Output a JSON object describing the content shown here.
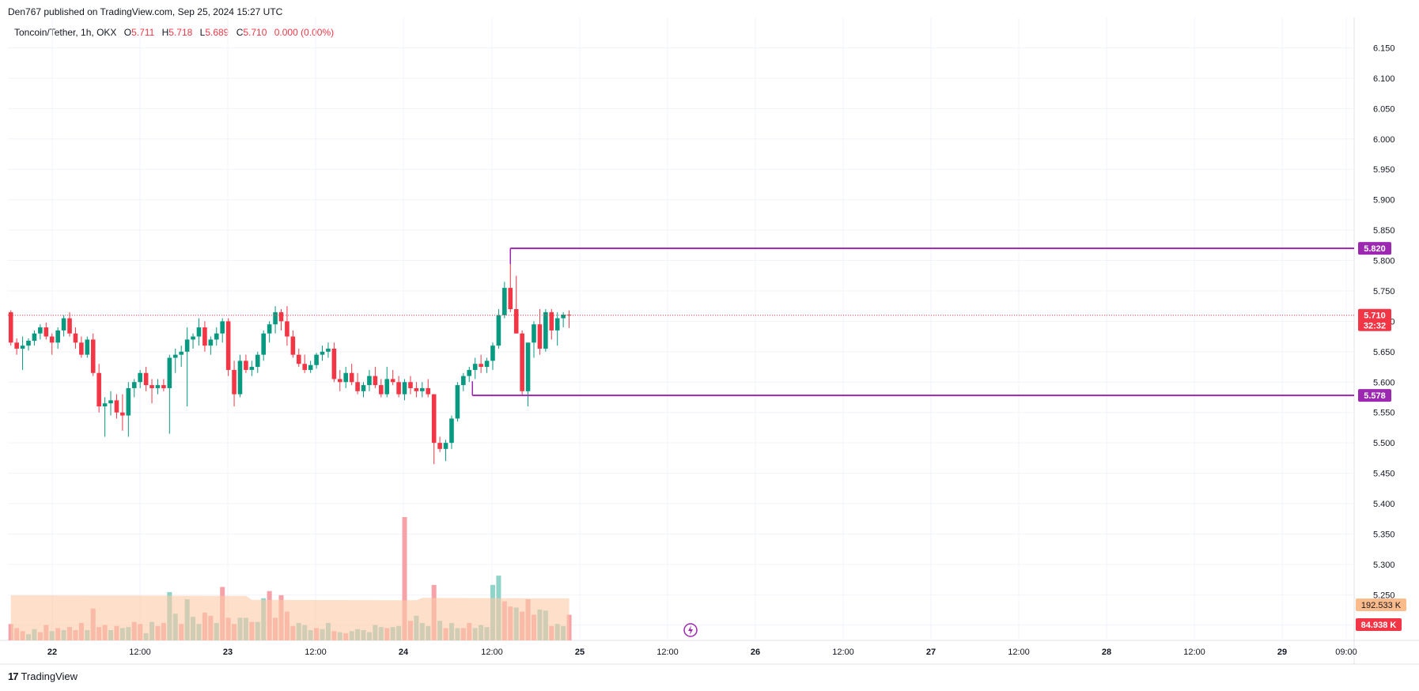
{
  "header": {
    "published": "Den767 published on TradingView.com, Sep 25, 2024 15:27 UTC"
  },
  "legend": {
    "symbol": "Toncoin/Tether, 1h, OKX",
    "o_label": "O",
    "o_value": "5.711",
    "h_label": "H",
    "h_value": "5.718",
    "l_label": "L",
    "l_value": "5.689",
    "c_label": "C",
    "c_value": "5.710",
    "change": "0.000 (0.00%)"
  },
  "footer": {
    "brand": "TradingView",
    "brand_mark": "17"
  },
  "colors": {
    "up": "#089981",
    "down": "#f23645",
    "up_volume": "#8fd3c9",
    "down_volume": "#f5a3a9",
    "volume_ma": "#fcc9a6",
    "level": "#9c27b0",
    "price_line": "#f23645",
    "grid": "#f0f3fa"
  },
  "chart_data": {
    "type": "candlestick",
    "symbol": "Toncoin/Tether",
    "interval": "1h",
    "exchange": "OKX",
    "y_ticks": [
      "5.200",
      "5.250",
      "5.300",
      "5.350",
      "5.400",
      "5.450",
      "5.500",
      "5.550",
      "5.600",
      "5.650",
      "5.700",
      "5.750",
      "5.800",
      "5.850",
      "5.900",
      "5.950",
      "6.000",
      "6.050",
      "6.100",
      "6.150"
    ],
    "ylim": [
      5.19,
      6.19
    ],
    "x_ticks": [
      "22",
      "12:00",
      "23",
      "12:00",
      "24",
      "12:00",
      "25",
      "12:00",
      "26",
      "12:00",
      "27",
      "12:00",
      "28",
      "12:00",
      "29",
      "09:00"
    ],
    "levels": [
      {
        "label": "5.820",
        "value": 5.82
      },
      {
        "label": "5.578",
        "value": 5.578
      }
    ],
    "last_price": {
      "value": 5.71,
      "label": "5.710",
      "countdown": "32:32"
    },
    "volume_labels": {
      "volume_ma": "192.533 K",
      "volume": "84.938 K"
    },
    "candles": [
      [
        5.715,
        5.718,
        5.66,
        5.665
      ],
      [
        5.665,
        5.672,
        5.645,
        5.655
      ],
      [
        5.655,
        5.675,
        5.62,
        5.66
      ],
      [
        5.66,
        5.672,
        5.652,
        5.668
      ],
      [
        5.668,
        5.685,
        5.66,
        5.68
      ],
      [
        5.68,
        5.695,
        5.67,
        5.69
      ],
      [
        5.69,
        5.698,
        5.67,
        5.675
      ],
      [
        5.675,
        5.68,
        5.645,
        5.665
      ],
      [
        5.665,
        5.69,
        5.655,
        5.685
      ],
      [
        5.685,
        5.71,
        5.675,
        5.705
      ],
      [
        5.705,
        5.715,
        5.675,
        5.68
      ],
      [
        5.68,
        5.69,
        5.655,
        5.665
      ],
      [
        5.665,
        5.675,
        5.64,
        5.645
      ],
      [
        5.645,
        5.675,
        5.64,
        5.67
      ],
      [
        5.67,
        5.68,
        5.61,
        5.615
      ],
      [
        5.615,
        5.63,
        5.55,
        5.56
      ],
      [
        5.56,
        5.575,
        5.51,
        5.565
      ],
      [
        5.565,
        5.585,
        5.545,
        5.57
      ],
      [
        5.57,
        5.58,
        5.54,
        5.55
      ],
      [
        5.55,
        5.58,
        5.52,
        5.545
      ],
      [
        5.545,
        5.6,
        5.51,
        5.59
      ],
      [
        5.59,
        5.605,
        5.575,
        5.6
      ],
      [
        5.6,
        5.62,
        5.59,
        5.615
      ],
      [
        5.615,
        5.625,
        5.585,
        5.595
      ],
      [
        5.595,
        5.605,
        5.565,
        5.59
      ],
      [
        5.59,
        5.605,
        5.58,
        5.595
      ],
      [
        5.595,
        5.605,
        5.585,
        5.59
      ],
      [
        5.59,
        5.645,
        5.515,
        5.64
      ],
      [
        5.64,
        5.655,
        5.615,
        5.645
      ],
      [
        5.645,
        5.66,
        5.625,
        5.65
      ],
      [
        5.65,
        5.69,
        5.56,
        5.67
      ],
      [
        5.67,
        5.68,
        5.655,
        5.675
      ],
      [
        5.675,
        5.705,
        5.66,
        5.69
      ],
      [
        5.69,
        5.7,
        5.65,
        5.66
      ],
      [
        5.66,
        5.675,
        5.645,
        5.67
      ],
      [
        5.67,
        5.69,
        5.66,
        5.68
      ],
      [
        5.68,
        5.705,
        5.665,
        5.7
      ],
      [
        5.7,
        5.705,
        5.61,
        5.62
      ],
      [
        5.62,
        5.635,
        5.56,
        5.58
      ],
      [
        5.58,
        5.645,
        5.575,
        5.635
      ],
      [
        5.635,
        5.645,
        5.615,
        5.62
      ],
      [
        5.62,
        5.635,
        5.61,
        5.625
      ],
      [
        5.625,
        5.65,
        5.615,
        5.645
      ],
      [
        5.645,
        5.685,
        5.635,
        5.68
      ],
      [
        5.68,
        5.7,
        5.665,
        5.695
      ],
      [
        5.695,
        5.725,
        5.68,
        5.715
      ],
      [
        5.715,
        5.72,
        5.685,
        5.7
      ],
      [
        5.7,
        5.725,
        5.66,
        5.675
      ],
      [
        5.675,
        5.685,
        5.64,
        5.645
      ],
      [
        5.645,
        5.655,
        5.625,
        5.63
      ],
      [
        5.63,
        5.645,
        5.615,
        5.62
      ],
      [
        5.62,
        5.635,
        5.615,
        5.628
      ],
      [
        5.628,
        5.648,
        5.622,
        5.645
      ],
      [
        5.645,
        5.66,
        5.635,
        5.65
      ],
      [
        5.65,
        5.665,
        5.64,
        5.655
      ],
      [
        5.655,
        5.665,
        5.6,
        5.605
      ],
      [
        5.605,
        5.62,
        5.585,
        5.6
      ],
      [
        5.6,
        5.625,
        5.59,
        5.615
      ],
      [
        5.615,
        5.63,
        5.595,
        5.6
      ],
      [
        5.6,
        5.615,
        5.58,
        5.585
      ],
      [
        5.585,
        5.6,
        5.575,
        5.595
      ],
      [
        5.595,
        5.62,
        5.585,
        5.61
      ],
      [
        5.61,
        5.625,
        5.59,
        5.595
      ],
      [
        5.595,
        5.605,
        5.575,
        5.58
      ],
      [
        5.58,
        5.625,
        5.575,
        5.605
      ],
      [
        5.605,
        5.62,
        5.595,
        5.6
      ],
      [
        5.6,
        5.61,
        5.575,
        5.58
      ],
      [
        5.58,
        5.605,
        5.57,
        5.6
      ],
      [
        5.6,
        5.61,
        5.58,
        5.59
      ],
      [
        5.59,
        5.6,
        5.575,
        5.585
      ],
      [
        5.585,
        5.6,
        5.575,
        5.59
      ],
      [
        5.59,
        5.605,
        5.575,
        5.58
      ],
      [
        5.58,
        5.58,
        5.465,
        5.5
      ],
      [
        5.5,
        5.51,
        5.485,
        5.49
      ],
      [
        5.49,
        5.505,
        5.47,
        5.5
      ],
      [
        5.5,
        5.545,
        5.49,
        5.54
      ],
      [
        5.54,
        5.6,
        5.535,
        5.595
      ],
      [
        5.595,
        5.615,
        5.585,
        5.61
      ],
      [
        5.61,
        5.625,
        5.6,
        5.62
      ],
      [
        5.62,
        5.64,
        5.605,
        5.63
      ],
      [
        5.63,
        5.645,
        5.615,
        5.625
      ],
      [
        5.625,
        5.64,
        5.615,
        5.635
      ],
      [
        5.635,
        5.665,
        5.62,
        5.66
      ],
      [
        5.66,
        5.72,
        5.655,
        5.71
      ],
      [
        5.71,
        5.765,
        5.705,
        5.755
      ],
      [
        5.755,
        5.82,
        5.715,
        5.72
      ],
      [
        5.72,
        5.775,
        5.68,
        5.68
      ],
      [
        5.68,
        5.685,
        5.578,
        5.585
      ],
      [
        5.585,
        5.66,
        5.56,
        5.665
      ],
      [
        5.665,
        5.7,
        5.64,
        5.695
      ],
      [
        5.695,
        5.72,
        5.645,
        5.655
      ],
      [
        5.655,
        5.72,
        5.65,
        5.715
      ],
      [
        5.715,
        5.72,
        5.67,
        5.685
      ],
      [
        5.685,
        5.715,
        5.66,
        5.705
      ],
      [
        5.705,
        5.715,
        5.69,
        5.711
      ],
      [
        5.711,
        5.718,
        5.689,
        5.71
      ]
    ],
    "volumes": [
      [
        80,
        "d"
      ],
      [
        60,
        "d"
      ],
      [
        45,
        "d"
      ],
      [
        30,
        "u"
      ],
      [
        55,
        "u"
      ],
      [
        40,
        "d"
      ],
      [
        75,
        "d"
      ],
      [
        45,
        "u"
      ],
      [
        60,
        "d"
      ],
      [
        50,
        "u"
      ],
      [
        65,
        "d"
      ],
      [
        50,
        "d"
      ],
      [
        85,
        "d"
      ],
      [
        50,
        "u"
      ],
      [
        155,
        "d"
      ],
      [
        65,
        "d"
      ],
      [
        75,
        "d"
      ],
      [
        50,
        "u"
      ],
      [
        70,
        "d"
      ],
      [
        60,
        "u"
      ],
      [
        65,
        "u"
      ],
      [
        90,
        "d"
      ],
      [
        80,
        "d"
      ],
      [
        35,
        "u"
      ],
      [
        90,
        "u"
      ],
      [
        70,
        "d"
      ],
      [
        85,
        "d"
      ],
      [
        235,
        "u"
      ],
      [
        130,
        "u"
      ],
      [
        80,
        "d"
      ],
      [
        200,
        "u"
      ],
      [
        115,
        "u"
      ],
      [
        80,
        "u"
      ],
      [
        135,
        "d"
      ],
      [
        120,
        "d"
      ],
      [
        85,
        "u"
      ],
      [
        260,
        "d"
      ],
      [
        110,
        "d"
      ],
      [
        80,
        "d"
      ],
      [
        110,
        "u"
      ],
      [
        110,
        "u"
      ],
      [
        90,
        "d"
      ],
      [
        90,
        "u"
      ],
      [
        205,
        "u"
      ],
      [
        240,
        "d"
      ],
      [
        110,
        "d"
      ],
      [
        220,
        "d"
      ],
      [
        140,
        "d"
      ],
      [
        70,
        "d"
      ],
      [
        85,
        "u"
      ],
      [
        75,
        "u"
      ],
      [
        50,
        "u"
      ],
      [
        60,
        "d"
      ],
      [
        55,
        "u"
      ],
      [
        85,
        "u"
      ],
      [
        45,
        "d"
      ],
      [
        40,
        "u"
      ],
      [
        35,
        "d"
      ],
      [
        45,
        "u"
      ],
      [
        55,
        "u"
      ],
      [
        50,
        "u"
      ],
      [
        40,
        "u"
      ],
      [
        75,
        "u"
      ],
      [
        65,
        "u"
      ],
      [
        60,
        "d"
      ],
      [
        65,
        "u"
      ],
      [
        70,
        "u"
      ],
      [
        600,
        "d"
      ],
      [
        95,
        "d"
      ],
      [
        120,
        "u"
      ],
      [
        85,
        "u"
      ],
      [
        70,
        "u"
      ],
      [
        270,
        "d"
      ],
      [
        95,
        "u"
      ],
      [
        60,
        "d"
      ],
      [
        85,
        "u"
      ],
      [
        60,
        "u"
      ],
      [
        60,
        "d"
      ],
      [
        85,
        "d"
      ],
      [
        60,
        "u"
      ],
      [
        75,
        "u"
      ],
      [
        65,
        "u"
      ],
      [
        270,
        "u"
      ],
      [
        315,
        "u"
      ],
      [
        190,
        "d"
      ],
      [
        165,
        "d"
      ],
      [
        160,
        "u"
      ],
      [
        140,
        "d"
      ],
      [
        200,
        "d"
      ],
      [
        125,
        "d"
      ],
      [
        150,
        "u"
      ],
      [
        145,
        "u"
      ],
      [
        70,
        "d"
      ],
      [
        80,
        "u"
      ],
      [
        70,
        "u"
      ],
      [
        125,
        "d"
      ]
    ]
  }
}
